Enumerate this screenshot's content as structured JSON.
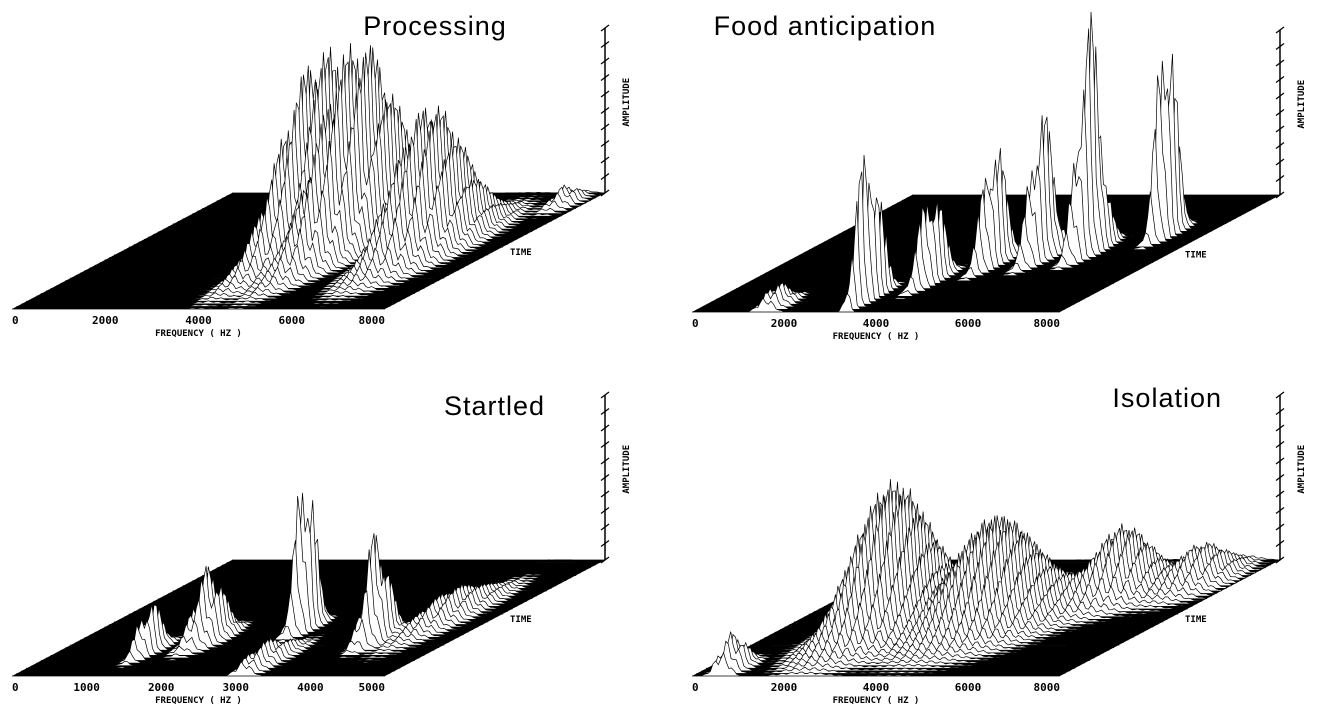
{
  "panels": [
    {
      "title": "Processing",
      "xticks": [
        "0",
        "2000",
        "4000",
        "6000",
        "8000"
      ],
      "xlabel": "FREQUENCY ( HZ )",
      "time_label": "TIME",
      "amplitude_label": "AMPLITUDE"
    },
    {
      "title": "Food anticipation",
      "xticks": [
        "0",
        "2000",
        "4000",
        "6000",
        "8000"
      ],
      "xlabel": "FREQUENCY ( HZ )",
      "time_label": "TIME",
      "amplitude_label": "AMPLITUDE"
    },
    {
      "title": "Startled",
      "xticks": [
        "0",
        "1000",
        "2000",
        "3000",
        "4000",
        "5000"
      ],
      "xlabel": "FREQUENCY ( HZ )",
      "time_label": "TIME",
      "amplitude_label": "AMPLITUDE"
    },
    {
      "title": "Isolation",
      "xticks": [
        "0",
        "2000",
        "4000",
        "6000",
        "8000"
      ],
      "xlabel": "FREQUENCY ( HZ )",
      "time_label": "TIME",
      "amplitude_label": "AMPLITUDE"
    }
  ]
}
